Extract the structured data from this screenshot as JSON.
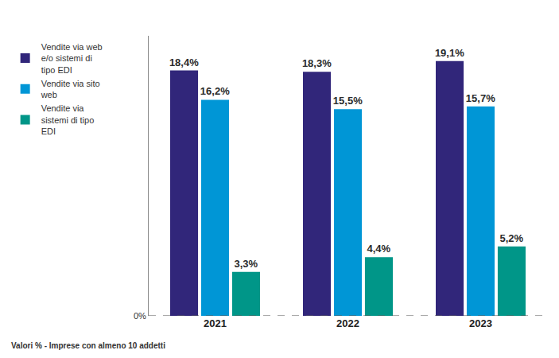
{
  "chart_data": {
    "type": "bar",
    "categories": [
      "2021",
      "2022",
      "2023"
    ],
    "series": [
      {
        "name": "Vendite via web e/o sistemi di tipo EDI",
        "color": "#31267a",
        "values": [
          18.4,
          18.3,
          19.1
        ],
        "value_labels": [
          "18,4%",
          "18,3%",
          "19,1%"
        ]
      },
      {
        "name": "Vendite via sito web",
        "color": "#0096d6",
        "values": [
          16.2,
          15.5,
          15.7
        ],
        "value_labels": [
          "16,2%",
          "15,5%",
          "15,7%"
        ]
      },
      {
        "name": "Vendite via sistemi di tipo EDI",
        "color": "#009688",
        "values": [
          3.3,
          4.4,
          5.2
        ],
        "value_labels": [
          "3,3%",
          "4,4%",
          "5,2%"
        ]
      }
    ],
    "ylim": [
      0,
      21
    ],
    "yticks": [
      {
        "value": 0,
        "label": "0%"
      }
    ],
    "grid": false,
    "legend": "top-left",
    "data_labels": true,
    "annotations": [
      "Valori % - Imprese con almeno 10 addetti"
    ]
  }
}
